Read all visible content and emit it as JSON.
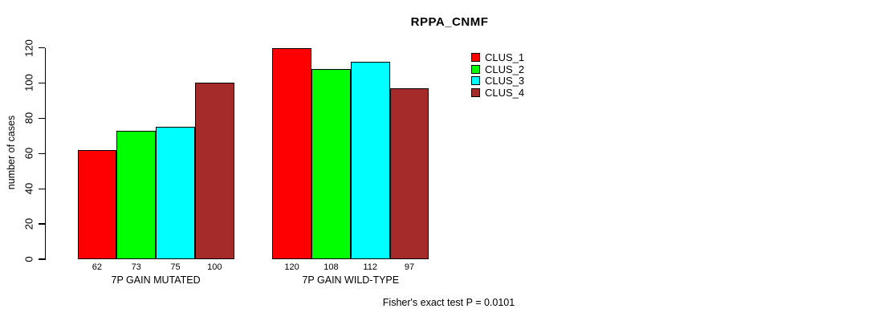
{
  "chart_data": {
    "type": "bar",
    "title": "RPPA_CNMF",
    "ylabel": "number of cases",
    "ylim": [
      0,
      120
    ],
    "yticks": [
      0,
      20,
      40,
      60,
      80,
      100,
      120
    ],
    "categories": [
      "7P GAIN MUTATED",
      "7P GAIN WILD-TYPE"
    ],
    "series": [
      {
        "name": "CLUS_1",
        "color": "#FF0000",
        "values": [
          62,
          120
        ]
      },
      {
        "name": "CLUS_2",
        "color": "#00FF00",
        "values": [
          73,
          108
        ]
      },
      {
        "name": "CLUS_3",
        "color": "#00FFFF",
        "values": [
          75,
          112
        ]
      },
      {
        "name": "CLUS_4",
        "color": "#A52A2A",
        "values": [
          100,
          97
        ]
      }
    ],
    "bar_value_labels": true,
    "grid": false,
    "legend_position": "right",
    "annotation": "Fisher's exact test P = 0.0101"
  }
}
